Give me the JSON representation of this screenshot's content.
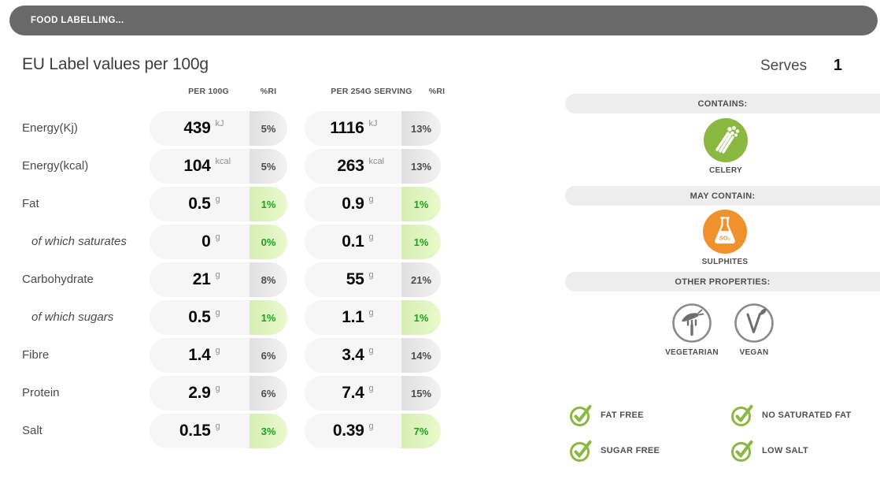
{
  "header": {
    "title": "FOOD LABELLING..."
  },
  "page": {
    "title": "EU Label values per 100g",
    "serves_label": "Serves",
    "serves_value": "1"
  },
  "table": {
    "columns": [
      "PER 100G",
      "%RI",
      "PER 254G SERVING",
      "%RI"
    ],
    "rows": [
      {
        "label": "Energy(Kj)",
        "indent": false,
        "per100": {
          "value": "439",
          "unit": "kJ",
          "ri": "5%",
          "green": false
        },
        "serving": {
          "value": "1116",
          "unit": "kJ",
          "ri": "13%",
          "green": false
        }
      },
      {
        "label": "Energy(kcal)",
        "indent": false,
        "per100": {
          "value": "104",
          "unit": "kcal",
          "ri": "5%",
          "green": false
        },
        "serving": {
          "value": "263",
          "unit": "kcal",
          "ri": "13%",
          "green": false
        }
      },
      {
        "label": "Fat",
        "indent": false,
        "per100": {
          "value": "0.5",
          "unit": "g",
          "ri": "1%",
          "green": true
        },
        "serving": {
          "value": "0.9",
          "unit": "g",
          "ri": "1%",
          "green": true
        }
      },
      {
        "label": "of which saturates",
        "indent": true,
        "per100": {
          "value": "0",
          "unit": "g",
          "ri": "0%",
          "green": true
        },
        "serving": {
          "value": "0.1",
          "unit": "g",
          "ri": "1%",
          "green": true
        }
      },
      {
        "label": "Carbohydrate",
        "indent": false,
        "per100": {
          "value": "21",
          "unit": "g",
          "ri": "8%",
          "green": false
        },
        "serving": {
          "value": "55",
          "unit": "g",
          "ri": "21%",
          "green": false
        }
      },
      {
        "label": "of which sugars",
        "indent": true,
        "per100": {
          "value": "0.5",
          "unit": "g",
          "ri": "1%",
          "green": true
        },
        "serving": {
          "value": "1.1",
          "unit": "g",
          "ri": "1%",
          "green": true
        }
      },
      {
        "label": "Fibre",
        "indent": false,
        "per100": {
          "value": "1.4",
          "unit": "g",
          "ri": "6%",
          "green": false
        },
        "serving": {
          "value": "3.4",
          "unit": "g",
          "ri": "14%",
          "green": false
        }
      },
      {
        "label": "Protein",
        "indent": false,
        "per100": {
          "value": "2.9",
          "unit": "g",
          "ri": "6%",
          "green": false
        },
        "serving": {
          "value": "7.4",
          "unit": "g",
          "ri": "15%",
          "green": false
        }
      },
      {
        "label": "Salt",
        "indent": false,
        "per100": {
          "value": "0.15",
          "unit": "g",
          "ri": "3%",
          "green": true
        },
        "serving": {
          "value": "0.39",
          "unit": "g",
          "ri": "7%",
          "green": true
        }
      }
    ]
  },
  "panel": {
    "contains": {
      "title": "CONTAINS:",
      "item_label": "CELERY",
      "icon": "celery-icon"
    },
    "may_contain": {
      "title": "MAY CONTAIN:",
      "item_label": "SULPHITES",
      "icon": "sulphites-icon",
      "flask_text": "SO₂"
    },
    "other_properties": {
      "title": "OTHER PROPERTIES:",
      "items": [
        {
          "label": "VEGETARIAN",
          "icon": "vegetarian-icon"
        },
        {
          "label": "VEGAN",
          "icon": "vegan-icon"
        }
      ]
    },
    "badges": [
      {
        "label": "FAT FREE"
      },
      {
        "label": "NO SATURATED FAT"
      },
      {
        "label": "SUGAR FREE"
      },
      {
        "label": "LOW SALT"
      }
    ]
  },
  "colors": {
    "green_accent": "#8ab841",
    "orange_accent": "#f0922b",
    "ri_green_text": "#1ca31c",
    "topbar_gray": "#696969"
  }
}
